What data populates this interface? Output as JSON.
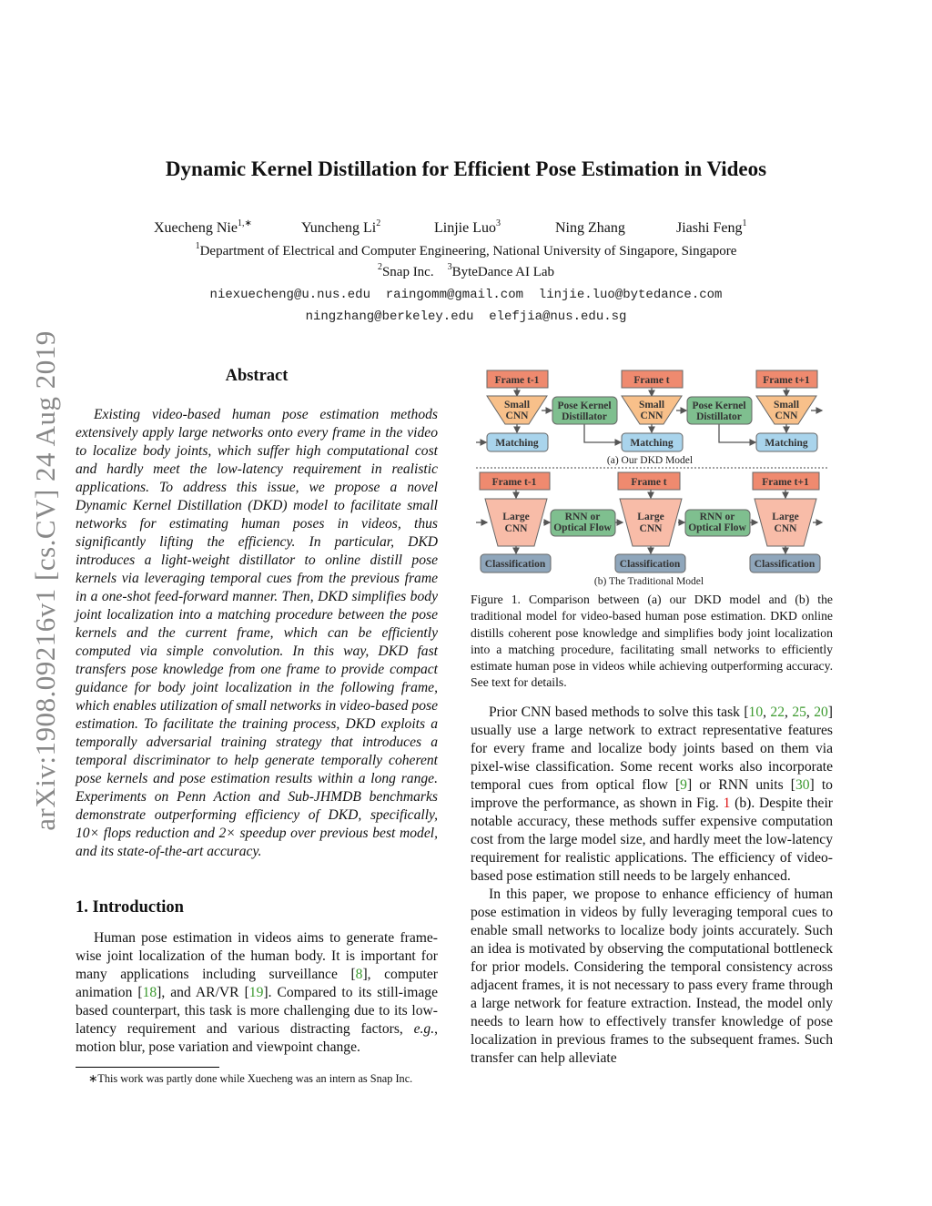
{
  "stamp": "arXiv:1908.09216v1  [cs.CV]  24 Aug 2019",
  "title": "Dynamic Kernel Distillation for Efficient Pose Estimation in Videos",
  "authors": [
    {
      "name": "Xuecheng Nie",
      "sup": "1,∗"
    },
    {
      "name": "Yuncheng Li",
      "sup": "2"
    },
    {
      "name": "Linjie Luo",
      "sup": "3"
    },
    {
      "name": "Ning Zhang",
      "sup": ""
    },
    {
      "name": "Jiashi Feng",
      "sup": "1"
    }
  ],
  "affiliations": {
    "line1_sup": "1",
    "line1": "Department of Electrical and Computer Engineering, National University of Singapore, Singapore",
    "a2_sup": "2",
    "a2": "Snap Inc.",
    "a3_sup": "3",
    "a3": "ByteDance AI Lab"
  },
  "emails": {
    "line1": "niexuecheng@u.nus.edu  raingomm@gmail.com  linjie.luo@bytedance.com",
    "line2": "ningzhang@berkeley.edu  elefjia@nus.edu.sg"
  },
  "abstract": {
    "heading": "Abstract",
    "text": "Existing video-based human pose estimation methods extensively apply large networks onto every frame in the video to localize body joints, which suffer high computational cost and hardly meet the low-latency requirement in realistic applications. To address this issue, we propose a novel Dynamic Kernel Distillation (DKD) model to facilitate small networks for estimating human poses in videos, thus significantly lifting the efficiency. In particular, DKD introduces a light-weight distillator to online distill pose kernels via leveraging temporal cues from the previous frame in a one-shot feed-forward manner. Then, DKD simplifies body joint localization into a matching procedure between the pose kernels and the current frame, which can be efficiently computed via simple convolution.  In this way, DKD fast transfers pose knowledge from one frame to provide compact guidance for body joint localization in the following frame, which enables utilization of small networks in video-based pose estimation. To facilitate the training process, DKD exploits a temporally adversarial training strategy that introduces a temporal discriminator to help generate temporally coherent pose kernels and pose estimation results within a long range.  Experiments on Penn Action and Sub-JHMDB benchmarks demonstrate outperforming efficiency of DKD, specifically, 10× flops reduction and 2× speedup over previous best model, and its state-of-the-art accuracy."
  },
  "intro": {
    "heading": "1. Introduction",
    "paragraphs": [
      [
        "Human pose estimation in videos aims to generate frame-wise joint localization of the human body. It is important for many applications including surveillance [",
        {
          "cite": "8"
        },
        "], computer animation [",
        {
          "cite": "18"
        },
        "], and AR/VR [",
        {
          "cite": "19"
        },
        "]. Compared to its still-image based counterpart, this task is more challenging due to its low-latency requirement and various distracting factors, ",
        {
          "em": "e.g."
        },
        ", motion blur, pose variation and viewpoint change."
      ]
    ]
  },
  "footnote": "∗This work was partly done while Xuecheng was an intern as Snap Inc.",
  "figure": {
    "frames": [
      "Frame t-1",
      "Frame t",
      "Frame t+1"
    ],
    "small_cnn": [
      "Small",
      "CNN"
    ],
    "distillator": [
      "Pose Kernel",
      "Distillator"
    ],
    "matching": "Matching",
    "caption_a": "(a) Our DKD Model",
    "large_cnn": [
      "Large",
      "CNN"
    ],
    "rnn": [
      "RNN or",
      "Optical Flow"
    ],
    "classification": "Classification",
    "caption_b": "(b) The Traditional Model",
    "colors": {
      "frame": "#ef8a6f",
      "small_cnn": "#f8c08a",
      "distillator": "#7fbf8f",
      "matching": "#a9d4ec",
      "large_cnn": "#f8bca8",
      "classification": "#8fa6bb"
    },
    "caption": "Figure 1. Comparison between (a) our DKD model and (b) the traditional model for video-based human pose estimation. DKD online distills coherent pose knowledge and simplifies body joint localization into a matching procedure, facilitating small networks to efficiently estimate human pose in videos while achieving outperforming accuracy. See text for details."
  },
  "right": {
    "paragraphs": [
      [
        "Prior CNN based methods to solve this task [",
        {
          "cite": "10"
        },
        ", ",
        {
          "cite": "22"
        },
        ", ",
        {
          "cite": "25"
        },
        ", ",
        {
          "cite": "20"
        },
        "] usually use a large network to extract representative features for every frame and localize body joints based on them via pixel-wise classification. Some recent works also incorporate temporal cues from optical flow [",
        {
          "cite": "9"
        },
        "] or RNN units [",
        {
          "cite": "30"
        },
        "] to improve the performance, as shown in Fig. ",
        {
          "ref": "1"
        },
        " (b). Despite their notable accuracy, these methods suffer expensive computation cost from the large model size, and hardly meet the low-latency requirement for realistic applications. The efficiency of video-based pose estimation still needs to be largely enhanced."
      ],
      [
        "In this paper, we propose to enhance efficiency of human pose estimation in videos by fully leveraging temporal cues to enable small networks to localize body joints accurately. Such an idea is motivated by observing the computational bottleneck for prior models. Considering the temporal consistency across adjacent frames, it is not necessary to pass every frame through a large network for feature extraction. Instead, the model only needs to learn how to effectively transfer knowledge of pose localization in previous frames to the subsequent frames. Such transfer can help alleviate"
      ]
    ]
  }
}
